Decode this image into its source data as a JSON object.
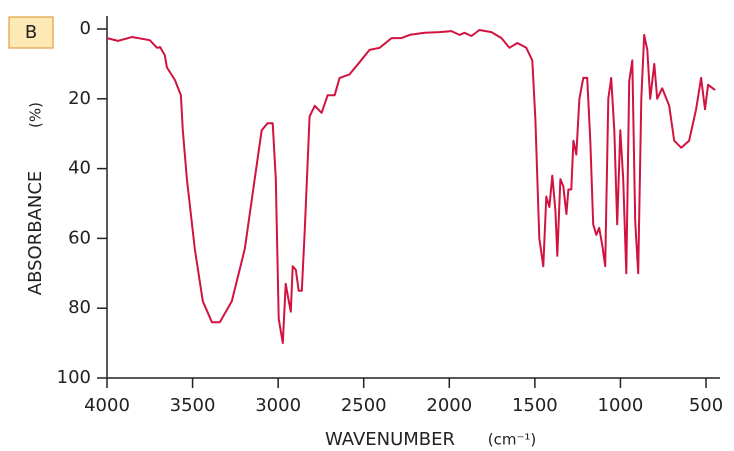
{
  "chart_data": {
    "type": "line",
    "label": "B",
    "x_label": "WAVENUMBER",
    "x_unit": "(cm⁻¹)",
    "y_label": "ABSORBANCE",
    "y_unit": "(%)",
    "color": "#d1133f",
    "xlim": [
      4000,
      430
    ],
    "xticks": [
      4000,
      3500,
      3000,
      2500,
      2000,
      1500,
      1000,
      500
    ],
    "ylim": [
      0,
      100
    ],
    "yticks": [
      0,
      20,
      40,
      60,
      80,
      100
    ],
    "y_inverted": true,
    "x_inverted": true,
    "x": [
      4000,
      3936,
      3854,
      3750,
      3708,
      3690,
      3662,
      3650,
      3603,
      3568,
      3557,
      3533,
      3487,
      3440,
      3387,
      3341,
      3271,
      3195,
      3137,
      3096,
      3061,
      3032,
      3014,
      2997,
      2973,
      2956,
      2938,
      2926,
      2915,
      2897,
      2880,
      2862,
      2845,
      2816,
      2786,
      2746,
      2711,
      2670,
      2641,
      2583,
      2524,
      2466,
      2407,
      2337,
      2279,
      2232,
      2145,
      2057,
      1987,
      1940,
      1911,
      1870,
      1824,
      1754,
      1695,
      1649,
      1602,
      1550,
      1515,
      1497,
      1474,
      1451,
      1433,
      1415,
      1398,
      1380,
      1369,
      1351,
      1334,
      1316,
      1304,
      1287,
      1275,
      1258,
      1240,
      1217,
      1194,
      1176,
      1159,
      1141,
      1124,
      1106,
      1089,
      1071,
      1054,
      1036,
      1019,
      1001,
      984,
      966,
      949,
      931,
      914,
      896,
      878,
      861,
      843,
      826,
      802,
      785,
      756,
      715,
      686,
      645,
      599,
      558,
      529,
      506,
      488,
      447
    ],
    "values": [
      2.6,
      3.4,
      2.3,
      3.2,
      5.4,
      5.2,
      7.5,
      11,
      14.6,
      19,
      29,
      43,
      63,
      78,
      84,
      84,
      78,
      63,
      43,
      29,
      27,
      27,
      43,
      83,
      90,
      73,
      78,
      81,
      68,
      69,
      75,
      75,
      58,
      25,
      22,
      24,
      19,
      19,
      14,
      13,
      9.5,
      6,
      5.4,
      2.6,
      2.6,
      1.7,
      1.1,
      0.9,
      0.6,
      1.7,
      1.1,
      2,
      0.3,
      0.9,
      2.6,
      5.4,
      4,
      5.4,
      9,
      26,
      60,
      68,
      48,
      51,
      42,
      52,
      65,
      43,
      45,
      53,
      46,
      46,
      32,
      36,
      20,
      14,
      14,
      32,
      56,
      59,
      57,
      62,
      68,
      20,
      14,
      29,
      56,
      29,
      43,
      70,
      15,
      9,
      55,
      70,
      20,
      1.7,
      6,
      20,
      10,
      20,
      17,
      22,
      32,
      34,
      32,
      23,
      14,
      23,
      16,
      17.5
    ]
  }
}
